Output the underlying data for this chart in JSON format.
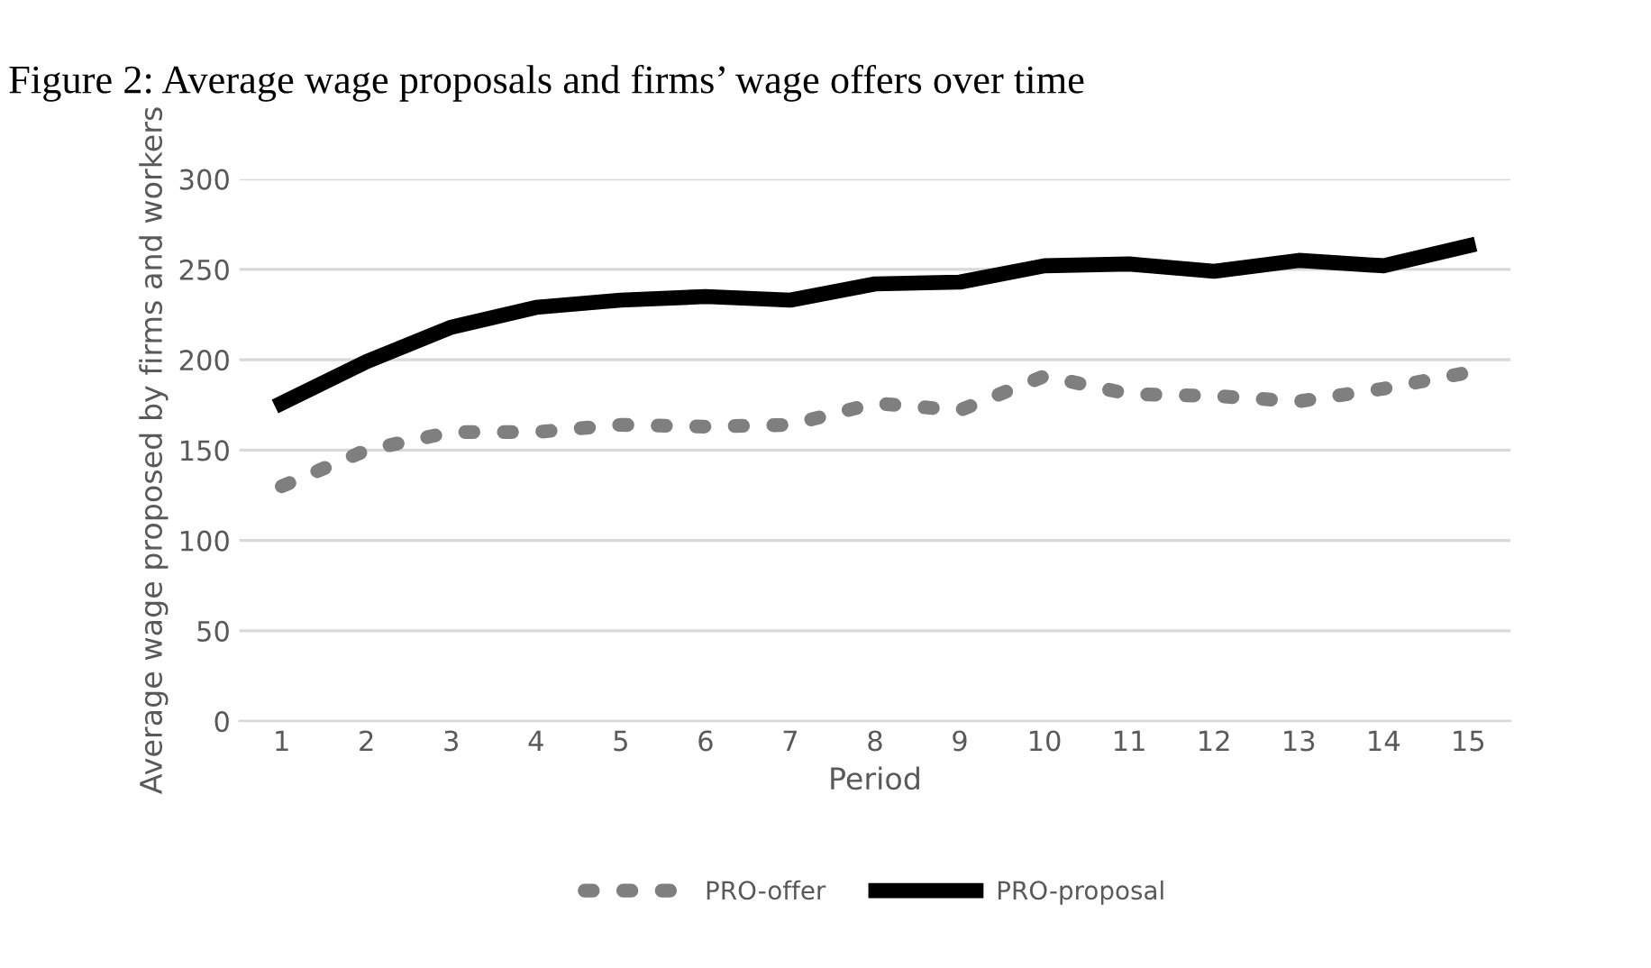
{
  "chart_data": {
    "type": "line",
    "title": "Figure 2: Average wage proposals and firms’ wage offers over time",
    "xlabel": "Period",
    "ylabel": "Average wage proposed by firms and workers",
    "categories": [
      "1",
      "2",
      "3",
      "4",
      "5",
      "6",
      "7",
      "8",
      "9",
      "10",
      "11",
      "12",
      "13",
      "14",
      "15"
    ],
    "series": [
      {
        "name": "PRO-offer",
        "color": "#7f7f7f",
        "line_style": "dotted",
        "values": [
          130,
          150,
          160,
          160,
          164,
          163,
          164,
          176,
          172,
          191,
          181,
          180,
          177,
          184,
          193
        ]
      },
      {
        "name": "PRO-proposal",
        "color": "#000000",
        "line_style": "solid",
        "values": [
          176,
          199,
          218,
          229,
          233,
          235,
          233,
          242,
          243,
          252,
          253,
          249,
          255,
          252,
          263
        ]
      }
    ],
    "ylim": [
      0,
      300
    ],
    "yticks": [
      0,
      50,
      100,
      150,
      200,
      250,
      300
    ],
    "grid": "y",
    "legend": "bottom"
  }
}
